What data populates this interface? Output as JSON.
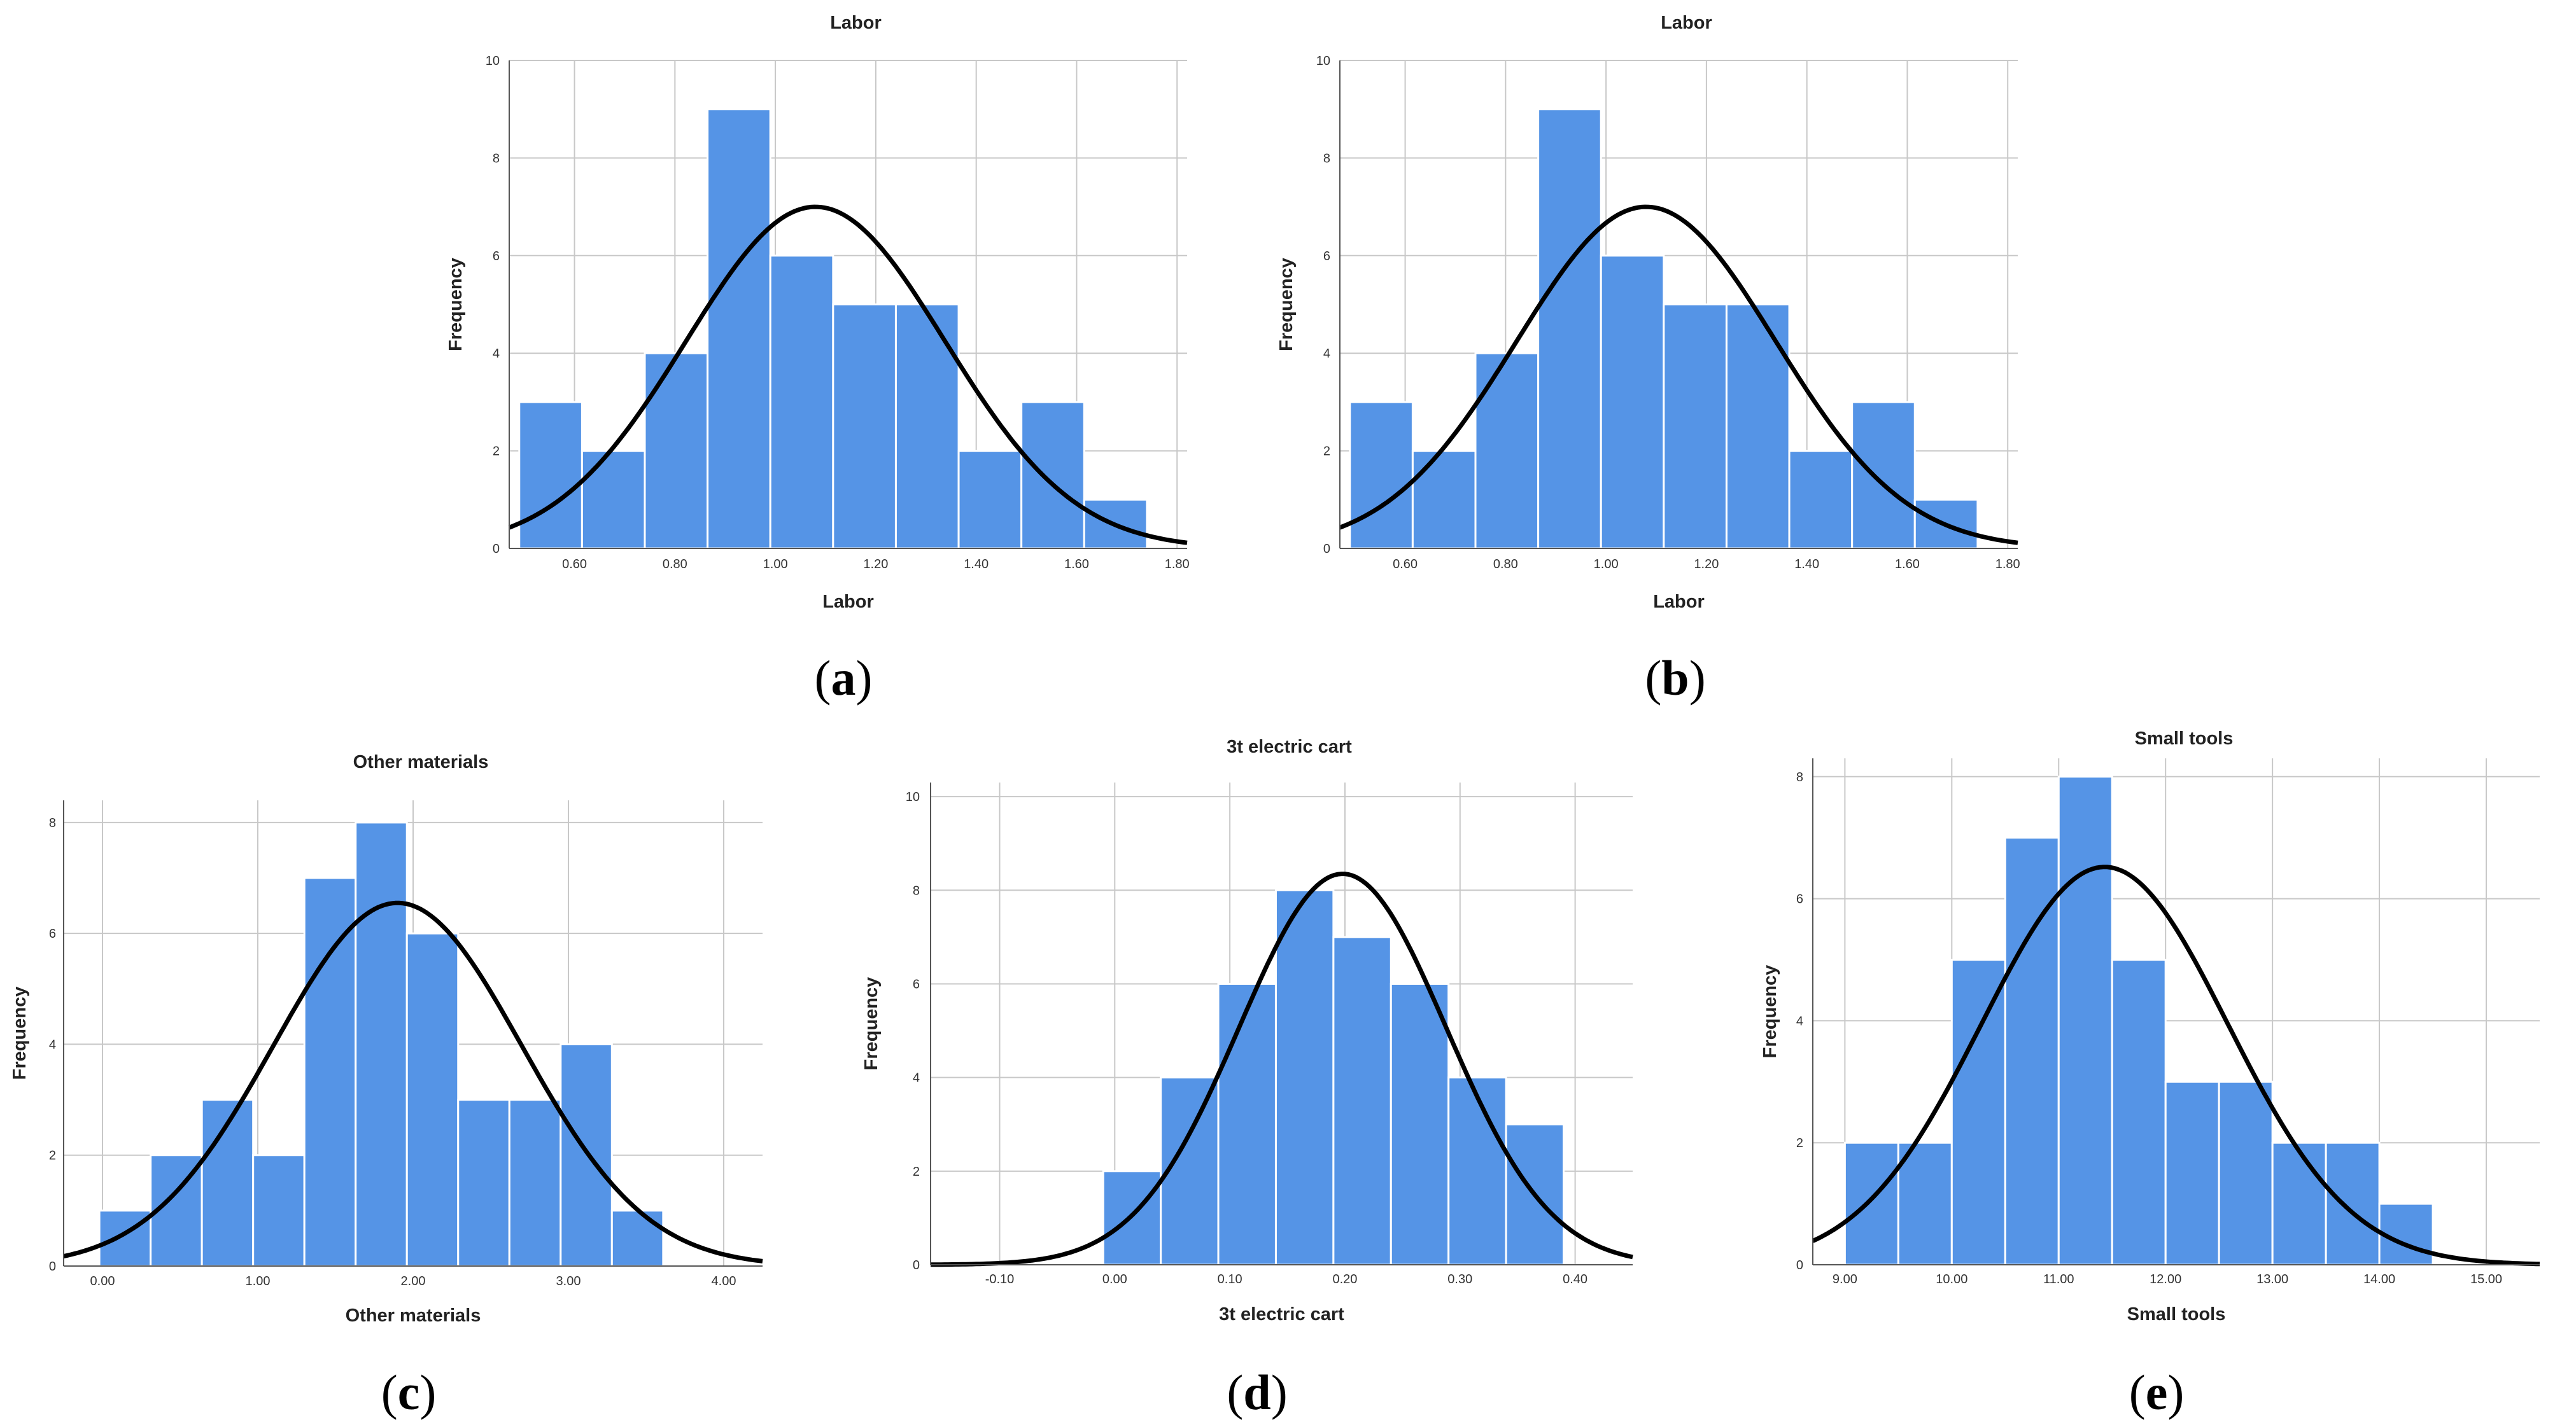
{
  "chart_data": [
    {
      "caption": "a",
      "type": "bar",
      "subtype": "histogram-with-normal-curve",
      "title": "Labor",
      "xlabel": "Labor",
      "ylabel": "Frequency",
      "xlim": [
        0.47,
        1.82
      ],
      "ylim": [
        0,
        10
      ],
      "x_ticks": [
        0.6,
        0.8,
        1.0,
        1.2,
        1.4,
        1.6,
        1.8
      ],
      "x_tick_labels": [
        "0.60",
        "0.80",
        "1.00",
        "1.20",
        "1.40",
        "1.60",
        "1.80"
      ],
      "y_ticks": [
        0,
        2,
        4,
        6,
        8,
        10
      ],
      "y_tick_labels": [
        "0",
        "2",
        "4",
        "6",
        "8",
        "10"
      ],
      "bin_edges": [
        0.49,
        0.615,
        0.74,
        0.865,
        0.99,
        1.115,
        1.24,
        1.365,
        1.49,
        1.615,
        1.74
      ],
      "values": [
        3,
        2,
        4,
        9,
        6,
        5,
        5,
        2,
        3,
        1
      ],
      "normal_curve": {
        "mean": 1.08,
        "sd": 0.258,
        "peak": 7.0
      }
    },
    {
      "caption": "b",
      "type": "bar",
      "subtype": "histogram-with-normal-curve",
      "title": "Labor",
      "xlabel": "Labor",
      "ylabel": "Frequency",
      "xlim": [
        0.47,
        1.82
      ],
      "ylim": [
        0,
        10
      ],
      "x_ticks": [
        0.6,
        0.8,
        1.0,
        1.2,
        1.4,
        1.6,
        1.8
      ],
      "x_tick_labels": [
        "0.60",
        "0.80",
        "1.00",
        "1.20",
        "1.40",
        "1.60",
        "1.80"
      ],
      "y_ticks": [
        0,
        2,
        4,
        6,
        8,
        10
      ],
      "y_tick_labels": [
        "0",
        "2",
        "4",
        "6",
        "8",
        "10"
      ],
      "bin_edges": [
        0.49,
        0.615,
        0.74,
        0.865,
        0.99,
        1.115,
        1.24,
        1.365,
        1.49,
        1.615,
        1.74
      ],
      "values": [
        3,
        2,
        4,
        9,
        6,
        5,
        5,
        2,
        3,
        1
      ],
      "normal_curve": {
        "mean": 1.08,
        "sd": 0.258,
        "peak": 7.0
      }
    },
    {
      "caption": "c",
      "type": "bar",
      "subtype": "histogram-with-normal-curve",
      "title": "Other materials",
      "xlabel": "Other materials",
      "ylabel": "Frequency",
      "xlim": [
        -0.25,
        4.25
      ],
      "ylim": [
        0,
        8.4
      ],
      "x_ticks": [
        0,
        1,
        2,
        3,
        4
      ],
      "x_tick_labels": [
        "0.00",
        "1.00",
        "2.00",
        "3.00",
        "4.00"
      ],
      "y_ticks": [
        0,
        2,
        4,
        6,
        8
      ],
      "y_tick_labels": [
        "0",
        "2",
        "4",
        "6",
        "8"
      ],
      "bin_edges": [
        -0.02,
        0.31,
        0.64,
        0.97,
        1.3,
        1.63,
        1.96,
        2.29,
        2.62,
        2.95,
        3.28,
        3.61
      ],
      "values": [
        1,
        2,
        3,
        2,
        7,
        8,
        6,
        3,
        3,
        4,
        1
      ],
      "normal_curve": {
        "mean": 1.9,
        "sd": 0.8,
        "peak": 6.55
      }
    },
    {
      "caption": "d",
      "type": "bar",
      "subtype": "histogram-with-normal-curve",
      "title": "3t electric cart",
      "xlabel": "3t electric cart",
      "ylabel": "Frequency",
      "xlim": [
        -0.16,
        0.45
      ],
      "ylim": [
        0,
        10.3
      ],
      "x_ticks": [
        -0.1,
        0.0,
        0.1,
        0.2,
        0.3,
        0.4
      ],
      "x_tick_labels": [
        "-0.10",
        "0.00",
        "0.10",
        "0.20",
        "0.30",
        "0.40"
      ],
      "y_ticks": [
        0,
        2,
        4,
        6,
        8,
        10
      ],
      "y_tick_labels": [
        "0",
        "2",
        "4",
        "6",
        "8",
        "10"
      ],
      "bin_edges": [
        -0.01,
        0.04,
        0.09,
        0.14,
        0.19,
        0.24,
        0.29,
        0.34,
        0.39
      ],
      "values": [
        2,
        4,
        6,
        8,
        7,
        6,
        4,
        3
      ],
      "normal_curve": {
        "mean": 0.198,
        "sd": 0.09,
        "peak": 8.35
      }
    },
    {
      "caption": "e",
      "type": "bar",
      "subtype": "histogram-with-normal-curve",
      "title": "Small tools",
      "xlabel": "Small tools",
      "ylabel": "Frequency",
      "xlim": [
        8.7,
        15.5
      ],
      "ylim": [
        0,
        8.3
      ],
      "x_ticks": [
        9,
        10,
        11,
        12,
        13,
        14,
        15
      ],
      "x_tick_labels": [
        "9.00",
        "10.00",
        "11.00",
        "12.00",
        "13.00",
        "14.00",
        "15.00"
      ],
      "y_ticks": [
        0,
        2,
        4,
        6,
        8
      ],
      "y_tick_labels": [
        "0",
        "2",
        "4",
        "6",
        "8"
      ],
      "bin_edges": [
        9.0,
        9.5,
        10.0,
        10.5,
        11.0,
        11.5,
        12.0,
        12.5,
        13.0,
        13.5,
        14.0,
        14.5
      ],
      "values": [
        2,
        2,
        5,
        7,
        8,
        5,
        3,
        3,
        2,
        2,
        1
      ],
      "normal_curve": {
        "mean": 11.43,
        "sd": 1.15,
        "peak": 6.52
      }
    }
  ],
  "captions": [
    "(a)",
    "(b)",
    "(c)",
    "(d)",
    "(e)"
  ]
}
